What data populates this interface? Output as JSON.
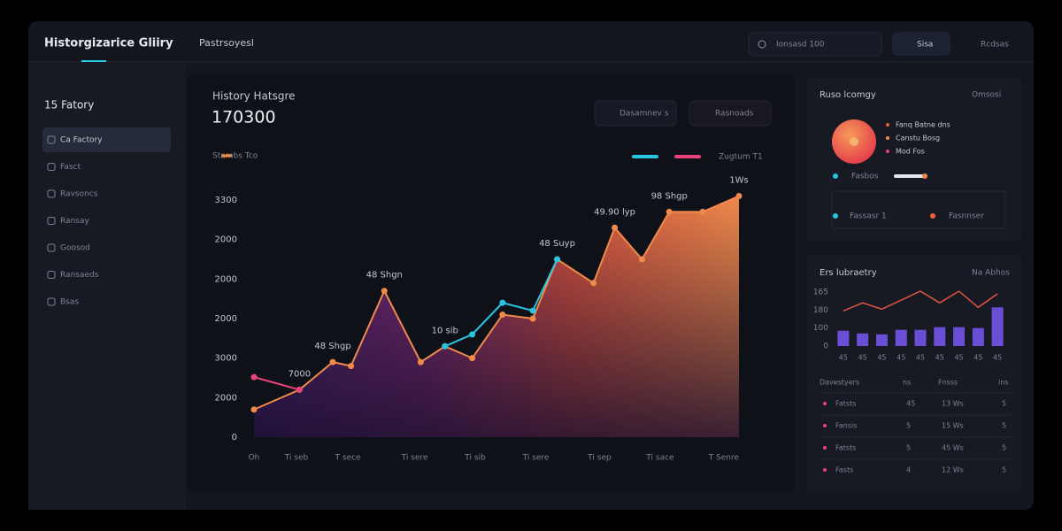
{
  "header": {
    "brand": "Historgizarice Gliiry",
    "page": "Pastrsoyesl",
    "search": "Ionsasd 100",
    "button": "Sisa",
    "user": "Rcdsas"
  },
  "sidebar": {
    "title": "15 Fatory",
    "items": [
      "Ca Factory",
      "Fasct",
      "Ravsoncs",
      "Ransay",
      "Goosod",
      "Ransaeds",
      "Bsas"
    ]
  },
  "chart_data": [
    {
      "type": "area",
      "title": "History Hatsgre",
      "subtitle": "170300",
      "caption": "Stambs Tco",
      "buttons": [
        "Dasamnev s",
        "Rasnoads"
      ],
      "x": [
        0,
        1.5,
        2.6,
        3.2,
        4.3,
        5.5,
        6.3,
        7.2,
        8.2,
        9.2,
        10,
        11.2,
        11.9,
        12.8,
        13.7,
        14.8,
        16
      ],
      "series": [
        {
          "name": "Zugtum T1",
          "color": "#f08a4b",
          "values": [
            350,
            600,
            950,
            900,
            1850,
            950,
            1150,
            1000,
            1550,
            1500,
            2250,
            1950,
            2650,
            2250,
            2850,
            2850,
            3050
          ]
        },
        {
          "color": "#29c4e0",
          "values": [
            null,
            null,
            null,
            null,
            null,
            null,
            1150,
            1300,
            1700,
            1600,
            2250,
            null,
            null,
            null,
            null,
            null,
            null
          ]
        },
        {
          "color": "#e8437a",
          "values": [
            760,
            600,
            null,
            null,
            null,
            null,
            null,
            null,
            null,
            null,
            null,
            null,
            null,
            null,
            null,
            null,
            null
          ]
        }
      ],
      "annotations": [
        "7000",
        "48 Shgp",
        "48 Shgn",
        "10 sib",
        "48 Suyp",
        "49.90 lyp",
        "98 Shgp",
        "1Ws"
      ],
      "xlim": [
        0,
        16
      ],
      "ylim": [
        0,
        3000
      ],
      "yticks": [
        0,
        {
          "value": 500,
          "label": "2000"
        },
        {
          "value": 1000,
          "label": "3000"
        },
        {
          "value": 1500,
          "label": "2000"
        },
        {
          "value": 2000,
          "label": "2000"
        },
        {
          "value": 2500,
          "label": "2000"
        },
        {
          "value": 3000,
          "label": "3300"
        }
      ],
      "xticks": [
        {
          "value": 0,
          "label": "Oh"
        },
        {
          "value": 1.4,
          "label": "Ti seb"
        },
        {
          "value": 3.1,
          "label": "T sece"
        },
        {
          "value": 5.3,
          "label": "Ti sere"
        },
        {
          "value": 7.3,
          "label": "Ti sib"
        },
        {
          "value": 9.3,
          "label": "Ti sere"
        },
        {
          "value": 11.4,
          "label": "Ti sep"
        },
        {
          "value": 13.4,
          "label": "Ti sace"
        },
        {
          "value": 15.5,
          "label": "T Senre"
        }
      ],
      "grid": false
    },
    {
      "type": "bar",
      "title": "Ers lubraetry",
      "subtitle": "Na Abhos",
      "categories": [
        "45",
        "45",
        "45",
        "45",
        "45",
        "45",
        "45",
        "45",
        "45"
      ],
      "series": [
        {
          "type": "bar",
          "color": "#6a4fd6",
          "values": [
            85,
            70,
            65,
            90,
            90,
            105,
            105,
            100,
            215
          ]
        },
        {
          "type": "line",
          "color": "#e2553e",
          "values": [
            195,
            240,
            205,
            255,
            305,
            240,
            305,
            215,
            290
          ]
        }
      ],
      "ylim": [
        0,
        300
      ],
      "yticks": [
        0,
        100,
        {
          "value": 200,
          "label": "180"
        },
        {
          "value": 300,
          "label": "165"
        }
      ],
      "grid": false
    }
  ],
  "summary": {
    "title": "Ruso lcomgy",
    "link": "Omsosi",
    "legend": [
      {
        "label": "Fanq Batne dns",
        "color": "#f0603a"
      },
      {
        "label": "Canstu Bosg",
        "color": "#f08a4b"
      },
      {
        "label": "Mod Fos",
        "color": "#e8437a"
      }
    ],
    "status": "Fasbos",
    "footer": [
      {
        "label": "Fassasr 1",
        "color": "#29c4e0"
      },
      {
        "label": "Fasnnser",
        "color": "#f0603a"
      }
    ]
  },
  "table": {
    "header": [
      "Davestyers",
      "ns",
      "Fnsss",
      "ins"
    ],
    "rows": [
      [
        "Fatsts",
        "45",
        "13 Ws",
        "5"
      ],
      [
        "Fansis",
        "5",
        "15 Ws",
        "5"
      ],
      [
        "Fatsts",
        "5",
        "45 Ws",
        "5"
      ],
      [
        "Fasts",
        "4",
        "12 Ws",
        "5"
      ]
    ],
    "dot_color": "#e8437a"
  }
}
